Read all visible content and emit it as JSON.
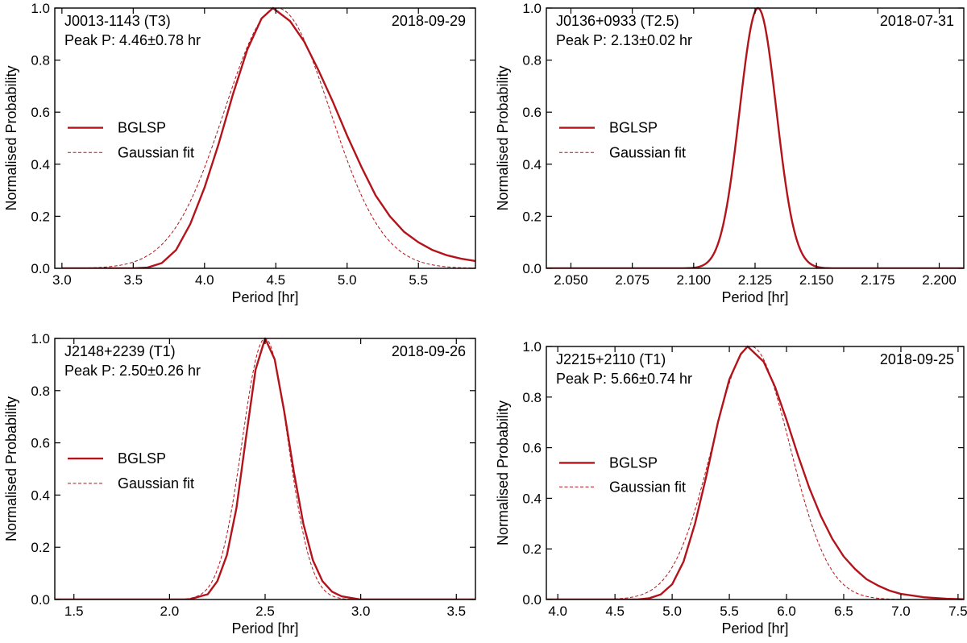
{
  "colors": {
    "curve": "#b3141b"
  },
  "legend": {
    "bglsp": "BGLSP",
    "gaussian": "Gaussian fit"
  },
  "chart_data": [
    {
      "type": "line",
      "object": "J0013-1143 (T3)",
      "date": "2018-09-29",
      "peak_text": "Peak P: 4.46±0.78 hr",
      "peak": 4.46,
      "xlabel": "Period [hr]",
      "ylabel": "Normalised Probability",
      "xlim": [
        2.95,
        5.9
      ],
      "ylim": [
        0,
        1.0
      ],
      "xticks": [
        3.0,
        3.5,
        4.0,
        4.5,
        5.0,
        5.5
      ],
      "xtick_labels": [
        "3.0",
        "3.5",
        "4.0",
        "4.5",
        "5.0",
        "5.5"
      ],
      "yticks": [
        0.0,
        0.2,
        0.4,
        0.6,
        0.8,
        1.0
      ],
      "ytick_labels": [
        "0.0",
        "0.2",
        "0.4",
        "0.6",
        "0.8",
        "1.0"
      ],
      "legend_position": "center-left",
      "series": [
        {
          "name": "BGLSP",
          "style": "solid",
          "x": [
            3.0,
            3.5,
            3.6,
            3.7,
            3.8,
            3.9,
            4.0,
            4.1,
            4.2,
            4.3,
            4.4,
            4.48,
            4.6,
            4.7,
            4.8,
            4.9,
            5.0,
            5.1,
            5.2,
            5.3,
            5.4,
            5.5,
            5.6,
            5.7,
            5.8,
            5.9
          ],
          "y": [
            0.0,
            0.0,
            0.003,
            0.02,
            0.07,
            0.17,
            0.31,
            0.48,
            0.67,
            0.84,
            0.96,
            1.0,
            0.95,
            0.87,
            0.76,
            0.64,
            0.51,
            0.39,
            0.28,
            0.2,
            0.14,
            0.1,
            0.07,
            0.05,
            0.037,
            0.028
          ]
        },
        {
          "name": "Gaussian fit",
          "style": "dashed",
          "mean": 4.51,
          "sigma": 0.37,
          "xrange": [
            3.0,
            5.9
          ]
        }
      ]
    },
    {
      "type": "line",
      "object": "J0136+0933 (T2.5)",
      "date": "2018-07-31",
      "peak_text": "Peak P: 2.13±0.02 hr",
      "peak": 2.13,
      "xlabel": "Period [hr]",
      "ylabel": "Normalised Probability",
      "xlim": [
        2.04,
        2.21
      ],
      "ylim": [
        0,
        1.0
      ],
      "xticks": [
        2.05,
        2.075,
        2.1,
        2.125,
        2.15,
        2.175,
        2.2
      ],
      "xtick_labels": [
        "2.050",
        "2.075",
        "2.100",
        "2.125",
        "2.150",
        "2.175",
        "2.200"
      ],
      "yticks": [
        0.0,
        0.2,
        0.4,
        0.6,
        0.8,
        1.0
      ],
      "ytick_labels": [
        "0.0",
        "0.2",
        "0.4",
        "0.6",
        "0.8",
        "1.0"
      ],
      "legend_position": "center-left",
      "series": [
        {
          "name": "BGLSP",
          "style": "solid",
          "mean": 2.1262,
          "sigma": 0.0075,
          "xrange": [
            2.04,
            2.21
          ]
        },
        {
          "name": "Gaussian fit",
          "style": "dashed",
          "mean": 2.1262,
          "sigma": 0.0075,
          "xrange": [
            2.04,
            2.21
          ]
        }
      ]
    },
    {
      "type": "line",
      "object": "J2148+2239 (T1)",
      "date": "2018-09-26",
      "peak_text": "Peak P: 2.50±0.26 hr",
      "peak": 2.5,
      "xlabel": "Period [hr]",
      "ylabel": "Normalised Probability",
      "xlim": [
        1.4,
        3.6
      ],
      "ylim": [
        0,
        1.0
      ],
      "xticks": [
        1.5,
        2.0,
        2.5,
        3.0,
        3.5
      ],
      "xtick_labels": [
        "1.5",
        "2.0",
        "2.5",
        "3.0",
        "3.5"
      ],
      "yticks": [
        0.0,
        0.2,
        0.4,
        0.6,
        0.8,
        1.0
      ],
      "ytick_labels": [
        "0.0",
        "0.2",
        "0.4",
        "0.6",
        "0.8",
        "1.0"
      ],
      "legend_position": "center-left",
      "series": [
        {
          "name": "BGLSP",
          "style": "solid",
          "x": [
            1.4,
            2.1,
            2.2,
            2.25,
            2.3,
            2.35,
            2.4,
            2.45,
            2.5,
            2.55,
            2.6,
            2.65,
            2.7,
            2.75,
            2.8,
            2.85,
            2.9,
            3.0,
            3.6
          ],
          "y": [
            0.0,
            0.0,
            0.02,
            0.07,
            0.17,
            0.35,
            0.62,
            0.88,
            1.0,
            0.92,
            0.72,
            0.49,
            0.29,
            0.15,
            0.07,
            0.03,
            0.012,
            0.0,
            0.0
          ]
        },
        {
          "name": "Gaussian fit",
          "style": "dashed",
          "mean": 2.5,
          "sigma": 0.12,
          "xrange": [
            1.4,
            3.6
          ]
        }
      ]
    },
    {
      "type": "line",
      "object": "J2215+2110 (T1)",
      "date": "2018-09-25",
      "peak_text": "Peak P: 5.66±0.74 hr",
      "peak": 5.66,
      "xlabel": "Period [hr]",
      "ylabel": "Normalised Probability",
      "xlim": [
        3.9,
        7.55
      ],
      "ylim": [
        0,
        1.0
      ],
      "xticks": [
        4.0,
        4.5,
        5.0,
        5.5,
        6.0,
        6.5,
        7.0,
        7.5
      ],
      "xtick_labels": [
        "4.0",
        "4.5",
        "5.0",
        "5.5",
        "6.0",
        "6.5",
        "7.0",
        "7.5"
      ],
      "yticks": [
        0.0,
        0.2,
        0.4,
        0.6,
        0.8,
        1.0
      ],
      "ytick_labels": [
        "0.0",
        "0.2",
        "0.4",
        "0.6",
        "0.8",
        "1.0"
      ],
      "legend_position": "center-left",
      "series": [
        {
          "name": "BGLSP",
          "style": "solid",
          "x": [
            3.9,
            4.7,
            4.8,
            4.9,
            5.0,
            5.1,
            5.2,
            5.3,
            5.4,
            5.5,
            5.6,
            5.66,
            5.8,
            5.9,
            6.0,
            6.1,
            6.2,
            6.3,
            6.4,
            6.5,
            6.6,
            6.7,
            6.8,
            6.9,
            7.0,
            7.2,
            7.4,
            7.55
          ],
          "y": [
            0.0,
            0.0,
            0.005,
            0.02,
            0.06,
            0.15,
            0.3,
            0.49,
            0.7,
            0.87,
            0.97,
            1.0,
            0.94,
            0.84,
            0.71,
            0.57,
            0.44,
            0.33,
            0.24,
            0.17,
            0.12,
            0.08,
            0.055,
            0.035,
            0.022,
            0.009,
            0.003,
            0.001
          ]
        },
        {
          "name": "Gaussian fit",
          "style": "dashed",
          "mean": 5.69,
          "sigma": 0.34,
          "xrange": [
            3.9,
            7.55
          ]
        }
      ]
    }
  ]
}
